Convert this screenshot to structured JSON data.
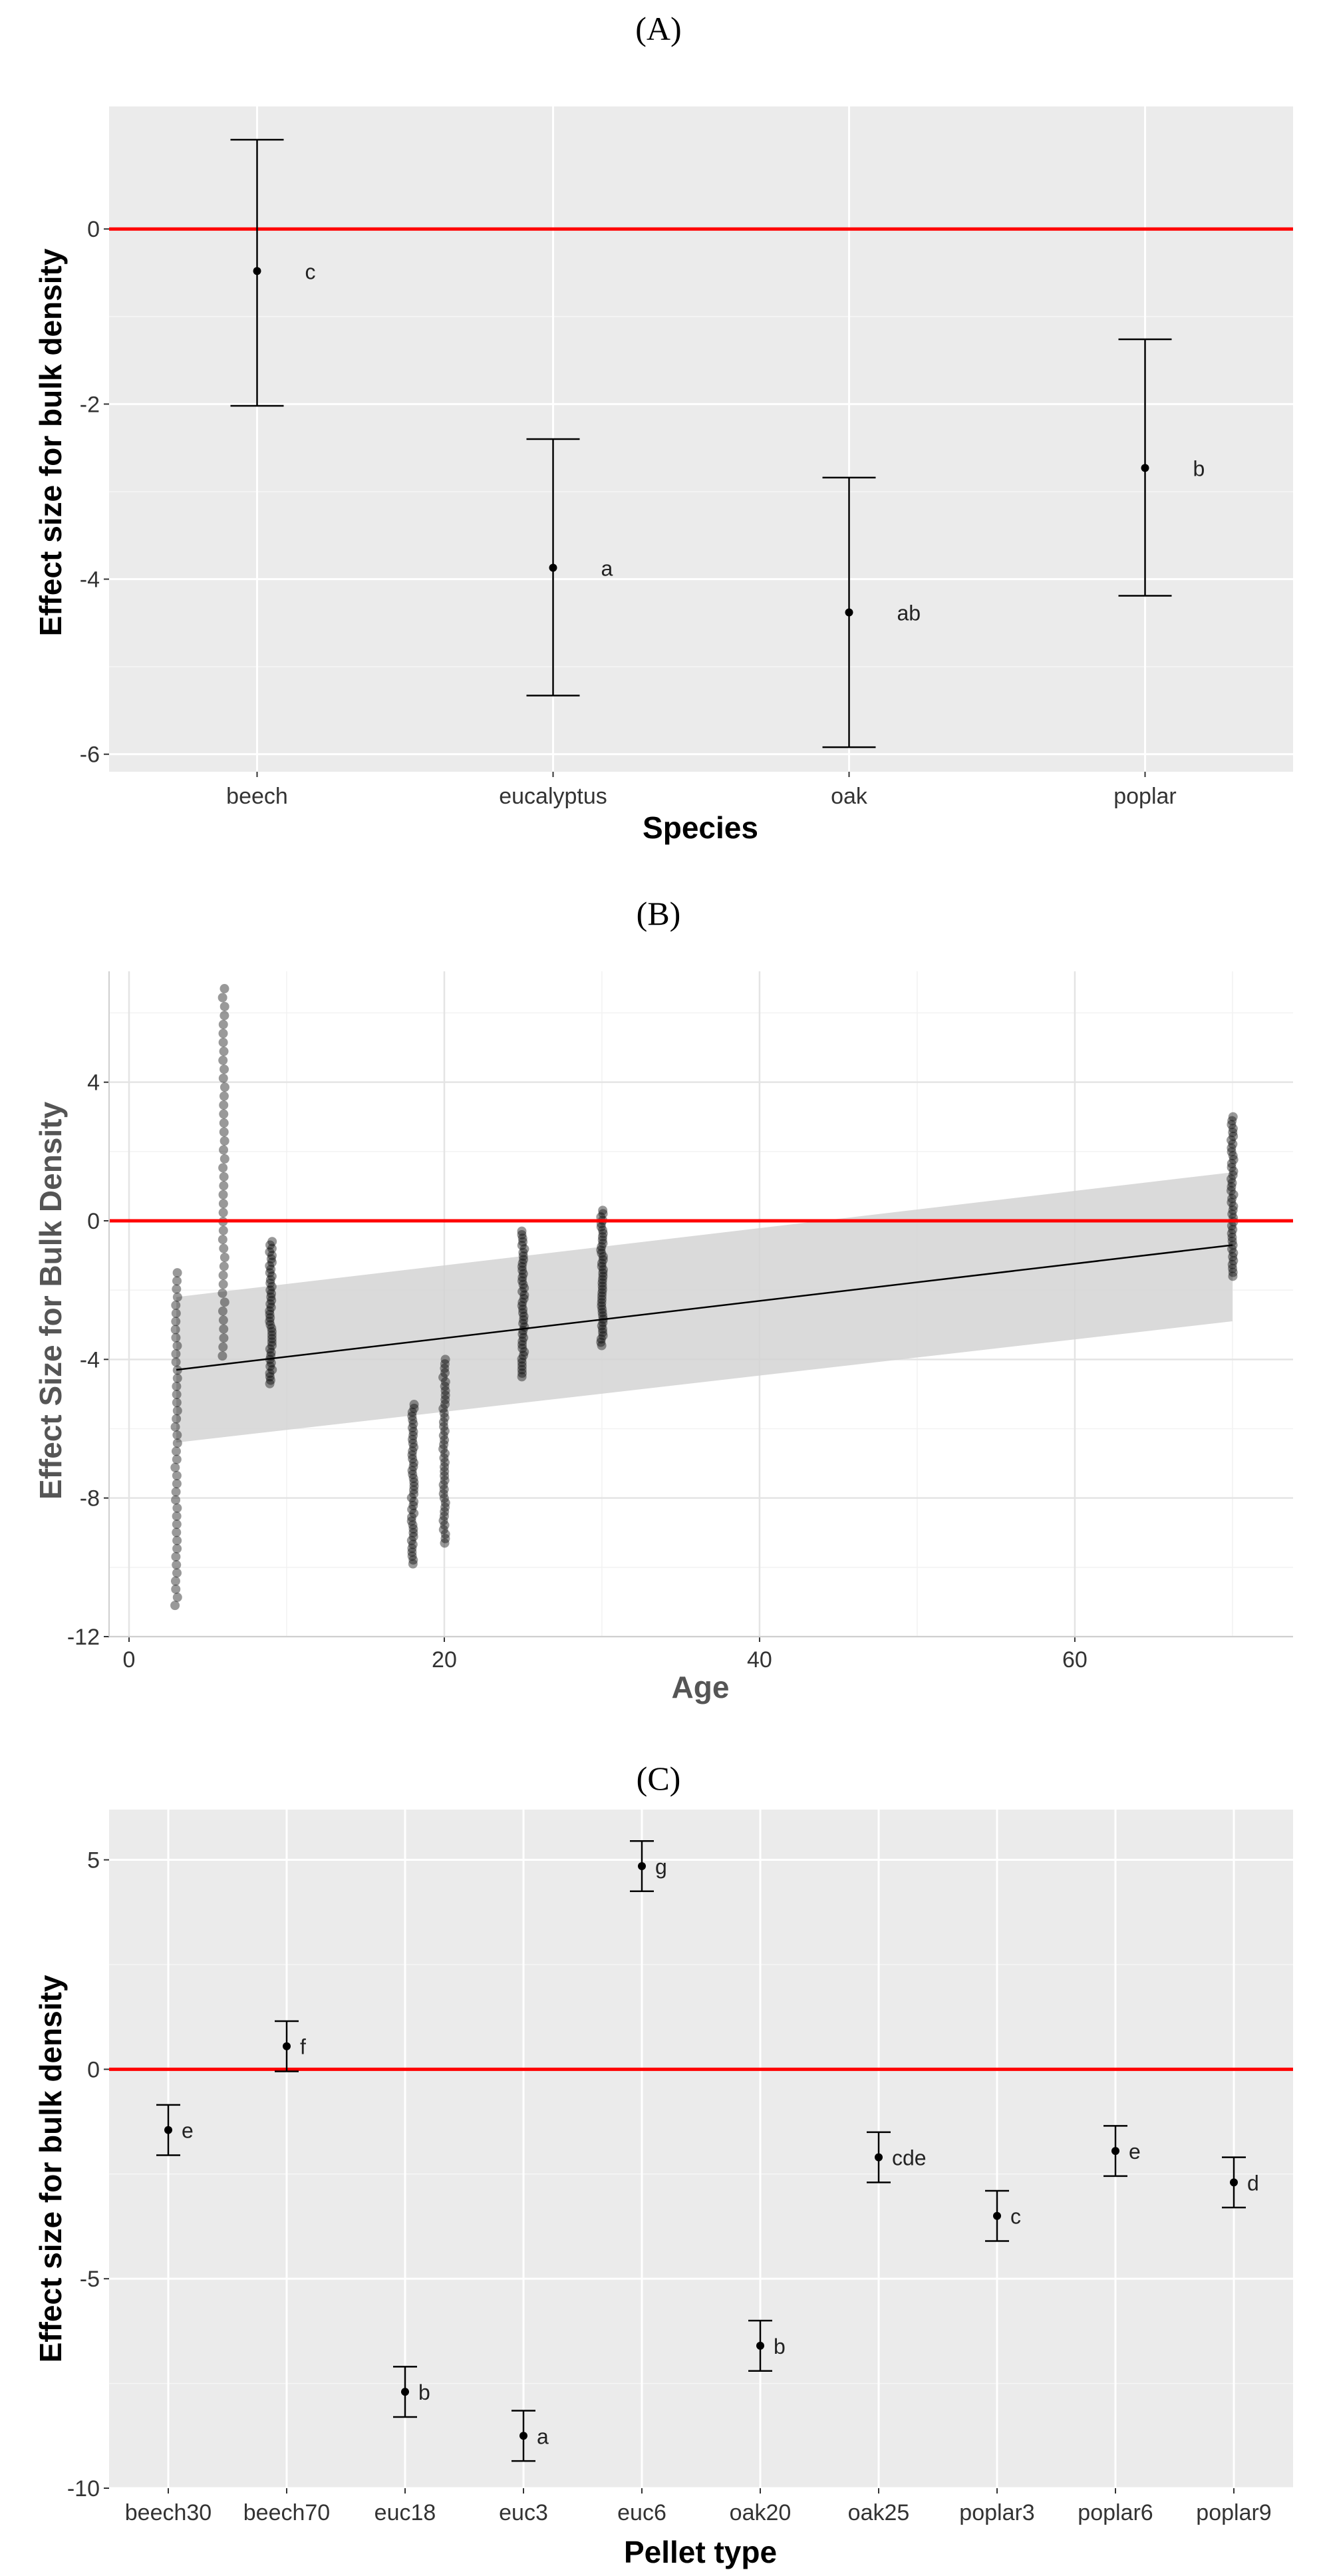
{
  "colors": {
    "panel_bg": "#ebebeb",
    "grid_major": "#ffffff",
    "reference_line": "#ff0000",
    "point": "#000000",
    "ribbon": "#d3d3d3"
  },
  "chart_data": [
    {
      "panel_label": "(A)",
      "type": "scatter",
      "subtype": "point-with-errorbars",
      "xlabel": "Species",
      "ylabel": "Effect size for bulk density",
      "categories": [
        "beech",
        "eucalyptus",
        "oak",
        "poplar"
      ],
      "y": [
        -0.48,
        -3.87,
        -4.38,
        -2.73
      ],
      "lower": [
        -2.02,
        -5.33,
        -5.92,
        -4.19
      ],
      "upper": [
        1.02,
        -2.4,
        -2.84,
        -1.26
      ],
      "letters": [
        "c",
        "a",
        "ab",
        "b"
      ],
      "ylim": [
        -6.2,
        1.4
      ],
      "yticks": [
        0,
        -2,
        -4,
        -6
      ],
      "yticklabels": [
        "0",
        "-2",
        "-4",
        "-6"
      ],
      "reference_line_y": 0,
      "grid": true
    },
    {
      "panel_label": "(B)",
      "type": "scatter",
      "subtype": "scatter-with-regression",
      "xlabel": "Age",
      "ylabel": "Effect Size for Bulk Density",
      "xlim": [
        0,
        73
      ],
      "ylim": [
        -12,
        7.2
      ],
      "xticks": [
        0,
        20,
        40,
        60
      ],
      "xticklabels": [
        "0",
        "20",
        "40",
        "60"
      ],
      "yticks": [
        4,
        0,
        -4,
        -8,
        -12
      ],
      "yticklabels": [
        "4",
        "0",
        "-4",
        "-8",
        "-12"
      ],
      "reference_line_y": 0,
      "regression": {
        "x": [
          3,
          70
        ],
        "y": [
          -4.3,
          -0.7
        ],
        "ci_lower": [
          -6.4,
          -2.9
        ],
        "ci_upper": [
          -2.2,
          1.4
        ]
      },
      "groups": [
        {
          "x": 3,
          "ymin": -11.1,
          "ymax": -1.5
        },
        {
          "x": 6,
          "ymin": -3.9,
          "ymax": 6.7
        },
        {
          "x": 9,
          "ymin": -4.7,
          "ymax": -0.6
        },
        {
          "x": 18,
          "ymin": -9.9,
          "ymax": -5.3
        },
        {
          "x": 20,
          "ymin": -9.3,
          "ymax": -4.0
        },
        {
          "x": 25,
          "ymin": -4.5,
          "ymax": -0.3
        },
        {
          "x": 30,
          "ymin": -3.6,
          "ymax": 0.3
        },
        {
          "x": 70,
          "ymin": -1.6,
          "ymax": 3.0
        }
      ],
      "grid": true
    },
    {
      "panel_label": "(C)",
      "type": "scatter",
      "subtype": "point-with-errorbars",
      "xlabel": "Pellet type",
      "ylabel": "Effect size for bulk density",
      "categories": [
        "beech30",
        "beech70",
        "euc18",
        "euc3",
        "euc6",
        "oak20",
        "oak25",
        "poplar3",
        "poplar6",
        "poplar9"
      ],
      "y": [
        -1.45,
        0.55,
        -7.7,
        -8.75,
        4.85,
        -6.6,
        -2.1,
        -3.5,
        -1.95,
        -2.7
      ],
      "lower": [
        -2.05,
        -0.05,
        -8.3,
        -9.35,
        4.25,
        -7.2,
        -2.7,
        -4.1,
        -2.55,
        -3.3
      ],
      "upper": [
        -0.85,
        1.15,
        -7.1,
        -8.15,
        5.45,
        -6.0,
        -1.5,
        -2.9,
        -1.35,
        -2.1
      ],
      "letters": [
        "e",
        "f",
        "b",
        "a",
        "g",
        "b",
        "cde",
        "c",
        "e",
        "d"
      ],
      "ylim": [
        -10,
        6.2
      ],
      "yticks": [
        5,
        0,
        -5,
        -10
      ],
      "yticklabels": [
        "5",
        "0",
        "-5",
        "-10"
      ],
      "reference_line_y": 0,
      "grid": true
    }
  ]
}
